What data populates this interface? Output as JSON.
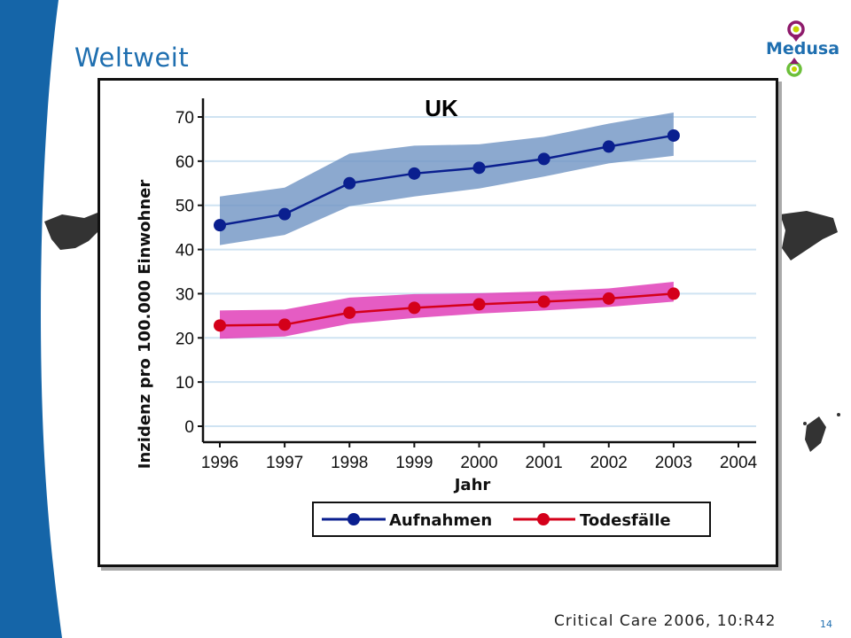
{
  "slide": {
    "title": "Weltweit",
    "logo_text": "Medusa",
    "citation": "Critical Care 2006, 10:R42",
    "page_number": "14"
  },
  "colors": {
    "sidebar": "#1565a8",
    "title": "#1f6fb0",
    "series_admissions": "#0a1f8f",
    "band_admissions": "#6f93c3",
    "series_deaths": "#d4001a",
    "band_deaths": "#e040b8",
    "grid": "#cfe3f2"
  },
  "chart_data": {
    "type": "line",
    "title": "UK",
    "xlabel": "Jahr",
    "ylabel": "Inzidenz pro 100.000 Einwohner",
    "x": [
      1996,
      1997,
      1998,
      1999,
      2000,
      2001,
      2002,
      2003
    ],
    "xticks": [
      "1996",
      "1997",
      "1998",
      "1999",
      "2000",
      "2001",
      "2002",
      "2003",
      "2004"
    ],
    "yticks": [
      "0",
      "10",
      "20",
      "30",
      "40",
      "50",
      "60",
      "70"
    ],
    "xlim": [
      1996,
      2004
    ],
    "ylim": [
      0,
      70
    ],
    "grid": true,
    "legend_position": "bottom",
    "series": [
      {
        "name": "Aufnahmen",
        "values": [
          45.5,
          48,
          55,
          57.2,
          58.5,
          60.5,
          63.3,
          65.8
        ],
        "ci_lower": [
          41,
          43.3,
          49.8,
          52,
          53.8,
          56.5,
          59.5,
          61.2
        ],
        "ci_upper": [
          52,
          54,
          61.7,
          63.5,
          63.8,
          65.5,
          68.5,
          71
        ]
      },
      {
        "name": "Todesfälle",
        "values": [
          22.8,
          23,
          25.7,
          26.8,
          27.6,
          28.2,
          28.9,
          30
        ],
        "ci_lower": [
          19.8,
          20.3,
          23.2,
          24.5,
          25.5,
          26.2,
          27,
          28.2
        ],
        "ci_upper": [
          26.2,
          26.4,
          29.1,
          29.9,
          30.1,
          30.5,
          31.2,
          32.7
        ]
      }
    ]
  }
}
